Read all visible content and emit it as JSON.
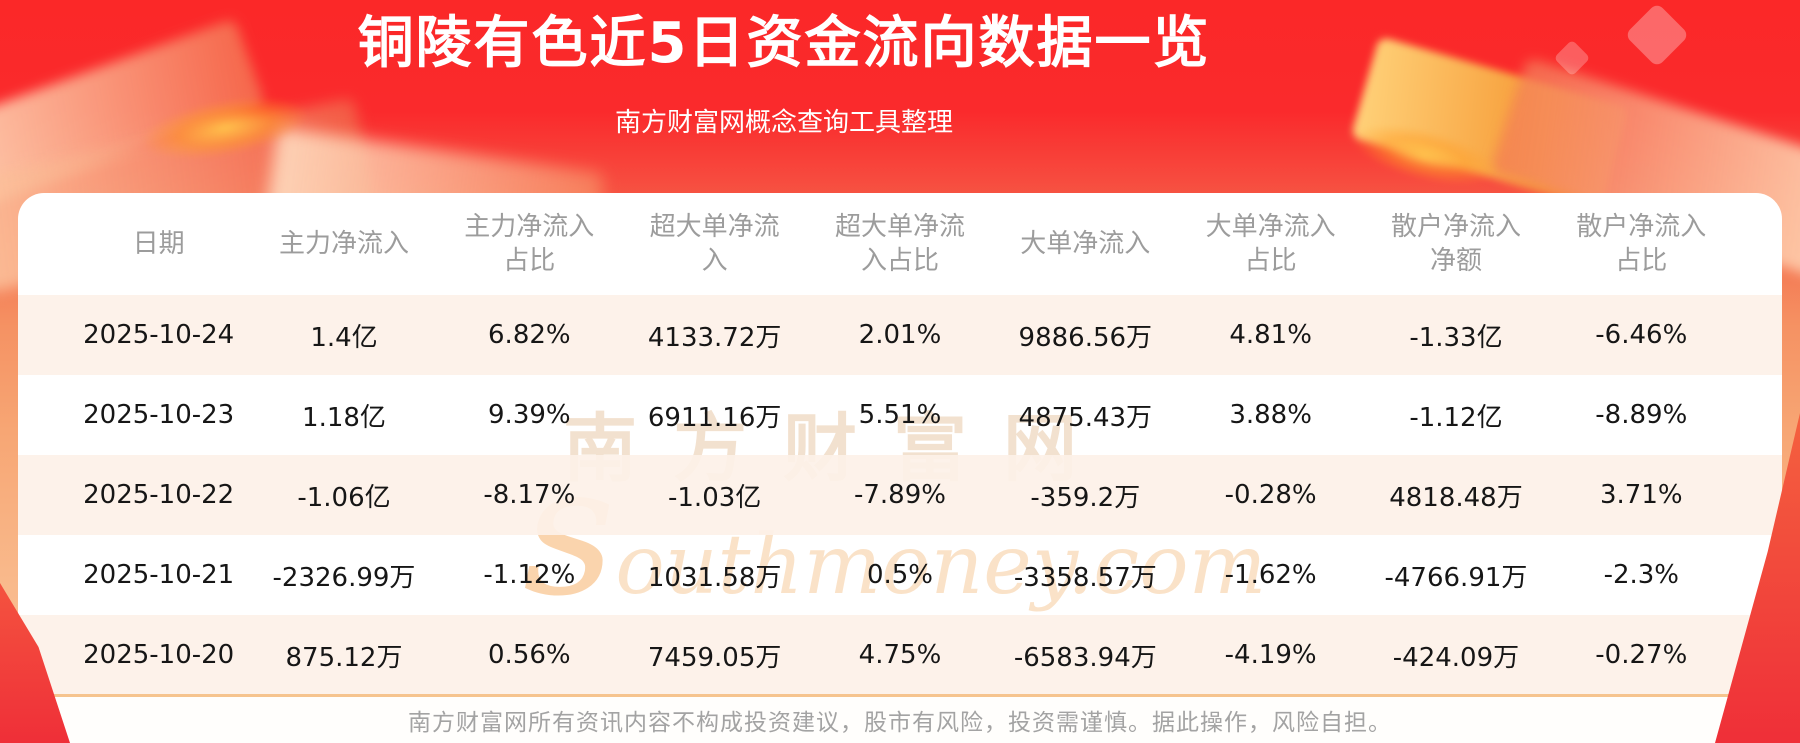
{
  "header": {
    "title": "铜陵有色近5日资金流向数据一览",
    "subtitle": "南方财富网概念查询工具整理"
  },
  "chart_data": {
    "type": "table",
    "title": "铜陵有色近5日资金流向数据一览",
    "columns": [
      "日期",
      "主力净流入",
      "主力净流入占比",
      "超大单净流入",
      "超大单净流入占比",
      "大单净流入",
      "大单净流入占比",
      "散户净流入净额",
      "散户净流入占比"
    ],
    "rows": [
      [
        "2025-10-24",
        "1.4亿",
        "6.82%",
        "4133.72万",
        "2.01%",
        "9886.56万",
        "4.81%",
        "-1.33亿",
        "-6.46%"
      ],
      [
        "2025-10-23",
        "1.18亿",
        "9.39%",
        "6911.16万",
        "5.51%",
        "4875.43万",
        "3.88%",
        "-1.12亿",
        "-8.89%"
      ],
      [
        "2025-10-22",
        "-1.06亿",
        "-8.17%",
        "-1.03亿",
        "-7.89%",
        "-359.2万",
        "-0.28%",
        "4818.48万",
        "3.71%"
      ],
      [
        "2025-10-21",
        "-2326.99万",
        "-1.12%",
        "1031.58万",
        "0.5%",
        "-3358.57万",
        "-1.62%",
        "-4766.91万",
        "-2.3%"
      ],
      [
        "2025-10-20",
        "875.12万",
        "0.56%",
        "7459.05万",
        "4.75%",
        "-6583.94万",
        "-4.19%",
        "-424.09万",
        "-0.27%"
      ]
    ]
  },
  "watermark": {
    "cn": "南方财富网",
    "en": "southmoney.com"
  },
  "footer": {
    "disclaimer": "南方财富网所有资讯内容不构成投资建议，股市有风险，投资需谨慎。据此操作，风险自担。"
  },
  "colors": {
    "background_red": "#fa2a2c",
    "background_salmon": "#f9b98b",
    "row_stripe": "#fdf1e8",
    "divider_orange": "#f6c48e",
    "header_text": "#9c9c9c",
    "cell_text": "#161616",
    "title_text": "#ffffff",
    "gold_accent": "#ffc24d"
  }
}
